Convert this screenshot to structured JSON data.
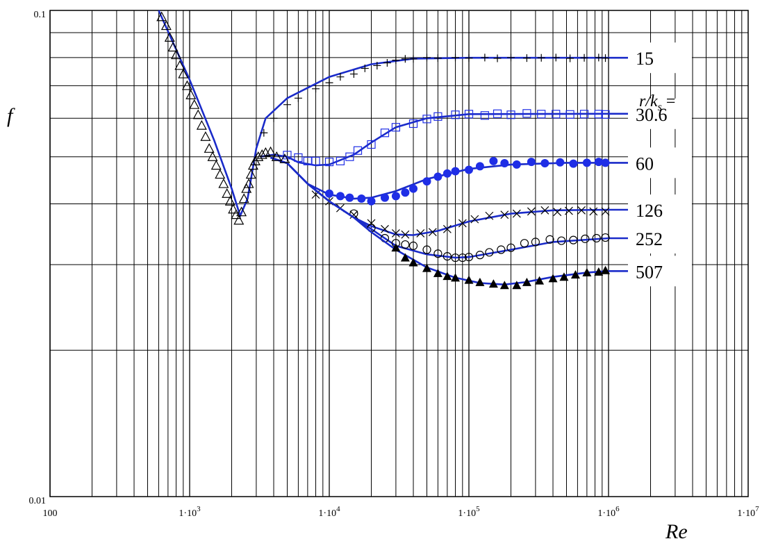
{
  "chart_data": {
    "type": "line",
    "title": "",
    "xlabel": "Re",
    "ylabel": "f",
    "xscale": "log",
    "yscale": "log",
    "xlim": [
      100,
      10000000
    ],
    "ylim": [
      0.01,
      0.1
    ],
    "grid": true,
    "x_ticks": [
      {
        "value": 100,
        "label": "100"
      },
      {
        "value": 1000,
        "label": "1·10",
        "exp": "3"
      },
      {
        "value": 10000,
        "label": "1·10",
        "exp": "4"
      },
      {
        "value": 100000,
        "label": "1·10",
        "exp": "5"
      },
      {
        "value": 1000000,
        "label": "1·10",
        "exp": "6"
      },
      {
        "value": 10000000,
        "label": "1·10",
        "exp": "7"
      }
    ],
    "y_ticks": [
      {
        "value": 0.01,
        "label": "0.01"
      },
      {
        "value": 0.1,
        "label": "0.1"
      }
    ],
    "legend_title": {
      "text": "r/k",
      "sub": "s",
      "suffix": " ="
    },
    "series": [
      {
        "name": "15",
        "marker": "plus",
        "marker_color": "#000000",
        "curve": [
          [
            600,
            0.1
          ],
          [
            1000,
            0.072
          ],
          [
            1500,
            0.054
          ],
          [
            2000,
            0.043
          ],
          [
            2300,
            0.0378
          ],
          [
            2600,
            0.041
          ],
          [
            3000,
            0.052
          ],
          [
            3500,
            0.06
          ],
          [
            5000,
            0.066
          ],
          [
            10000,
            0.073
          ],
          [
            20000,
            0.0775
          ],
          [
            40000,
            0.0796
          ],
          [
            100000,
            0.0799
          ],
          [
            1000000,
            0.0799
          ],
          [
            1400000,
            0.0799
          ]
        ],
        "points": [
          [
            3400,
            0.056
          ],
          [
            4000,
            0.06
          ],
          [
            5000,
            0.064
          ],
          [
            6000,
            0.066
          ],
          [
            8000,
            0.069
          ],
          [
            10000,
            0.071
          ],
          [
            12000,
            0.073
          ],
          [
            15000,
            0.074
          ],
          [
            18000,
            0.076
          ],
          [
            22000,
            0.077
          ],
          [
            26000,
            0.078
          ],
          [
            30000,
            0.079
          ],
          [
            35000,
            0.0795
          ],
          [
            40000,
            0.0795
          ],
          [
            50000,
            0.08
          ],
          [
            60000,
            0.0798
          ],
          [
            80000,
            0.08
          ],
          [
            100000,
            0.0798
          ],
          [
            130000,
            0.08
          ],
          [
            160000,
            0.0797
          ],
          [
            200000,
            0.08
          ],
          [
            260000,
            0.0798
          ],
          [
            330000,
            0.0799
          ],
          [
            420000,
            0.08
          ],
          [
            530000,
            0.0797
          ],
          [
            670000,
            0.0799
          ],
          [
            850000,
            0.08
          ],
          [
            950000,
            0.0798
          ]
        ]
      },
      {
        "name": "30.6",
        "marker": "square",
        "marker_color": "#1f2ee6",
        "curve": [
          [
            3200,
            0.05
          ],
          [
            4000,
            0.0505
          ],
          [
            5000,
            0.05
          ],
          [
            6000,
            0.0487
          ],
          [
            8000,
            0.048
          ],
          [
            10000,
            0.0482
          ],
          [
            15000,
            0.0505
          ],
          [
            20000,
            0.0535
          ],
          [
            30000,
            0.0575
          ],
          [
            50000,
            0.06
          ],
          [
            100000,
            0.0612
          ],
          [
            1000000,
            0.0613
          ],
          [
            1400000,
            0.0613
          ]
        ],
        "points": [
          [
            5000,
            0.0504
          ],
          [
            6000,
            0.0498
          ],
          [
            7000,
            0.049
          ],
          [
            8000,
            0.049
          ],
          [
            10000,
            0.0488
          ],
          [
            12000,
            0.049
          ],
          [
            14000,
            0.05
          ],
          [
            16000,
            0.0515
          ],
          [
            20000,
            0.053
          ],
          [
            25000,
            0.056
          ],
          [
            30000,
            0.0575
          ],
          [
            40000,
            0.0585
          ],
          [
            50000,
            0.0598
          ],
          [
            60000,
            0.0605
          ],
          [
            80000,
            0.061
          ],
          [
            100000,
            0.0612
          ],
          [
            130000,
            0.0608
          ],
          [
            160000,
            0.0613
          ],
          [
            200000,
            0.061
          ],
          [
            260000,
            0.0614
          ],
          [
            330000,
            0.0612
          ],
          [
            420000,
            0.0612
          ],
          [
            530000,
            0.0611
          ],
          [
            670000,
            0.0612
          ],
          [
            850000,
            0.0612
          ],
          [
            950000,
            0.0611
          ]
        ]
      },
      {
        "name": "60",
        "marker": "filled-circle",
        "marker_color": "#1f2ee6",
        "curve": [
          [
            3800,
            0.0498
          ],
          [
            5000,
            0.0485
          ],
          [
            7000,
            0.044
          ],
          [
            10000,
            0.0418
          ],
          [
            15000,
            0.041
          ],
          [
            20000,
            0.0412
          ],
          [
            30000,
            0.0425
          ],
          [
            50000,
            0.045
          ],
          [
            100000,
            0.0472
          ],
          [
            200000,
            0.0482
          ],
          [
            500000,
            0.0486
          ],
          [
            1000000,
            0.0486
          ],
          [
            1400000,
            0.0486
          ]
        ],
        "points": [
          [
            10000,
            0.042
          ],
          [
            12000,
            0.0415
          ],
          [
            14000,
            0.0412
          ],
          [
            17000,
            0.041
          ],
          [
            20000,
            0.0405
          ],
          [
            25000,
            0.0412
          ],
          [
            30000,
            0.0415
          ],
          [
            35000,
            0.0422
          ],
          [
            40000,
            0.043
          ],
          [
            50000,
            0.0445
          ],
          [
            60000,
            0.0455
          ],
          [
            70000,
            0.0462
          ],
          [
            80000,
            0.0467
          ],
          [
            100000,
            0.047
          ],
          [
            120000,
            0.0478
          ],
          [
            150000,
            0.049
          ],
          [
            180000,
            0.0485
          ],
          [
            220000,
            0.0482
          ],
          [
            280000,
            0.0488
          ],
          [
            350000,
            0.0485
          ],
          [
            450000,
            0.0487
          ],
          [
            560000,
            0.0484
          ],
          [
            700000,
            0.0486
          ],
          [
            850000,
            0.0488
          ],
          [
            950000,
            0.0486
          ]
        ]
      },
      {
        "name": "126",
        "marker": "cross",
        "marker_color": "#000000",
        "curve": [
          [
            3800,
            0.0498
          ],
          [
            5000,
            0.0485
          ],
          [
            7000,
            0.044
          ],
          [
            10000,
            0.0405
          ],
          [
            15000,
            0.0375
          ],
          [
            20000,
            0.036
          ],
          [
            30000,
            0.0346
          ],
          [
            40000,
            0.0345
          ],
          [
            60000,
            0.0352
          ],
          [
            100000,
            0.0368
          ],
          [
            200000,
            0.0382
          ],
          [
            400000,
            0.0388
          ],
          [
            1000000,
            0.0389
          ],
          [
            1400000,
            0.0389
          ]
        ],
        "points": [
          [
            8000,
            0.0418
          ],
          [
            10000,
            0.0405
          ],
          [
            12000,
            0.0392
          ],
          [
            15000,
            0.038
          ],
          [
            20000,
            0.0365
          ],
          [
            25000,
            0.0355
          ],
          [
            30000,
            0.0348
          ],
          [
            35000,
            0.0346
          ],
          [
            45000,
            0.0348
          ],
          [
            55000,
            0.035
          ],
          [
            70000,
            0.0355
          ],
          [
            90000,
            0.0365
          ],
          [
            110000,
            0.0372
          ],
          [
            140000,
            0.0378
          ],
          [
            180000,
            0.038
          ],
          [
            220000,
            0.0382
          ],
          [
            280000,
            0.0386
          ],
          [
            350000,
            0.0388
          ],
          [
            430000,
            0.0385
          ],
          [
            520000,
            0.0387
          ],
          [
            640000,
            0.0388
          ],
          [
            780000,
            0.0386
          ],
          [
            950000,
            0.0386
          ]
        ]
      },
      {
        "name": "252",
        "marker": "open-circle",
        "marker_color": "#000000",
        "curve": [
          [
            3800,
            0.0498
          ],
          [
            5000,
            0.0485
          ],
          [
            7000,
            0.044
          ],
          [
            10000,
            0.0405
          ],
          [
            15000,
            0.0375
          ],
          [
            20000,
            0.0355
          ],
          [
            30000,
            0.0328
          ],
          [
            50000,
            0.0315
          ],
          [
            80000,
            0.031
          ],
          [
            100000,
            0.0311
          ],
          [
            200000,
            0.0322
          ],
          [
            400000,
            0.0334
          ],
          [
            1000000,
            0.034
          ],
          [
            1400000,
            0.034
          ]
        ],
        "points": [
          [
            15000,
            0.0382
          ],
          [
            20000,
            0.0357
          ],
          [
            25000,
            0.034
          ],
          [
            30000,
            0.0332
          ],
          [
            35000,
            0.033
          ],
          [
            40000,
            0.0328
          ],
          [
            50000,
            0.0322
          ],
          [
            60000,
            0.0316
          ],
          [
            70000,
            0.0312
          ],
          [
            80000,
            0.031
          ],
          [
            90000,
            0.031
          ],
          [
            100000,
            0.0311
          ],
          [
            120000,
            0.0314
          ],
          [
            140000,
            0.0318
          ],
          [
            170000,
            0.0322
          ],
          [
            200000,
            0.0325
          ],
          [
            250000,
            0.0332
          ],
          [
            300000,
            0.0334
          ],
          [
            380000,
            0.0338
          ],
          [
            460000,
            0.0336
          ],
          [
            560000,
            0.0337
          ],
          [
            680000,
            0.0339
          ],
          [
            820000,
            0.034
          ],
          [
            950000,
            0.0341
          ]
        ]
      },
      {
        "name": "507",
        "marker": "filled-triangle",
        "marker_color": "#000000",
        "curve": [
          [
            3800,
            0.0498
          ],
          [
            5000,
            0.0485
          ],
          [
            7000,
            0.044
          ],
          [
            10000,
            0.0405
          ],
          [
            15000,
            0.0375
          ],
          [
            20000,
            0.035
          ],
          [
            30000,
            0.0322
          ],
          [
            50000,
            0.0296
          ],
          [
            80000,
            0.0282
          ],
          [
            120000,
            0.0275
          ],
          [
            180000,
            0.0273
          ],
          [
            250000,
            0.0276
          ],
          [
            400000,
            0.0283
          ],
          [
            700000,
            0.0289
          ],
          [
            1000000,
            0.0291
          ],
          [
            1400000,
            0.0291
          ]
        ],
        "points": [
          [
            30000,
            0.0325
          ],
          [
            35000,
            0.031
          ],
          [
            40000,
            0.0303
          ],
          [
            50000,
            0.0295
          ],
          [
            60000,
            0.0288
          ],
          [
            70000,
            0.0284
          ],
          [
            80000,
            0.0282
          ],
          [
            100000,
            0.0279
          ],
          [
            120000,
            0.0276
          ],
          [
            150000,
            0.0274
          ],
          [
            180000,
            0.0272
          ],
          [
            220000,
            0.0272
          ],
          [
            260000,
            0.0276
          ],
          [
            320000,
            0.0278
          ],
          [
            400000,
            0.0281
          ],
          [
            480000,
            0.0283
          ],
          [
            580000,
            0.0286
          ],
          [
            700000,
            0.0289
          ],
          [
            850000,
            0.029
          ],
          [
            950000,
            0.0292
          ]
        ]
      },
      {
        "name": "",
        "marker": "open-triangle",
        "marker_color": "#000000",
        "points": [
          [
            630,
            0.097
          ],
          [
            680,
            0.093
          ],
          [
            720,
            0.088
          ],
          [
            760,
            0.084
          ],
          [
            800,
            0.081
          ],
          [
            850,
            0.077
          ],
          [
            900,
            0.074
          ],
          [
            960,
            0.07
          ],
          [
            1020,
            0.067
          ],
          [
            1080,
            0.064
          ],
          [
            1150,
            0.061
          ],
          [
            1220,
            0.058
          ],
          [
            1300,
            0.055
          ],
          [
            1380,
            0.052
          ],
          [
            1460,
            0.05
          ],
          [
            1550,
            0.048
          ],
          [
            1650,
            0.046
          ],
          [
            1750,
            0.044
          ],
          [
            1850,
            0.042
          ],
          [
            1950,
            0.0405
          ],
          [
            2050,
            0.039
          ],
          [
            2150,
            0.038
          ],
          [
            2250,
            0.037
          ],
          [
            2350,
            0.0385
          ],
          [
            2450,
            0.041
          ],
          [
            2550,
            0.043
          ],
          [
            2650,
            0.044
          ],
          [
            2750,
            0.046
          ],
          [
            2850,
            0.048
          ],
          [
            2950,
            0.049
          ],
          [
            3100,
            0.05
          ],
          [
            3300,
            0.0505
          ],
          [
            3500,
            0.051
          ],
          [
            3800,
            0.0512
          ],
          [
            4200,
            0.05
          ],
          [
            4800,
            0.0495
          ]
        ]
      }
    ]
  }
}
